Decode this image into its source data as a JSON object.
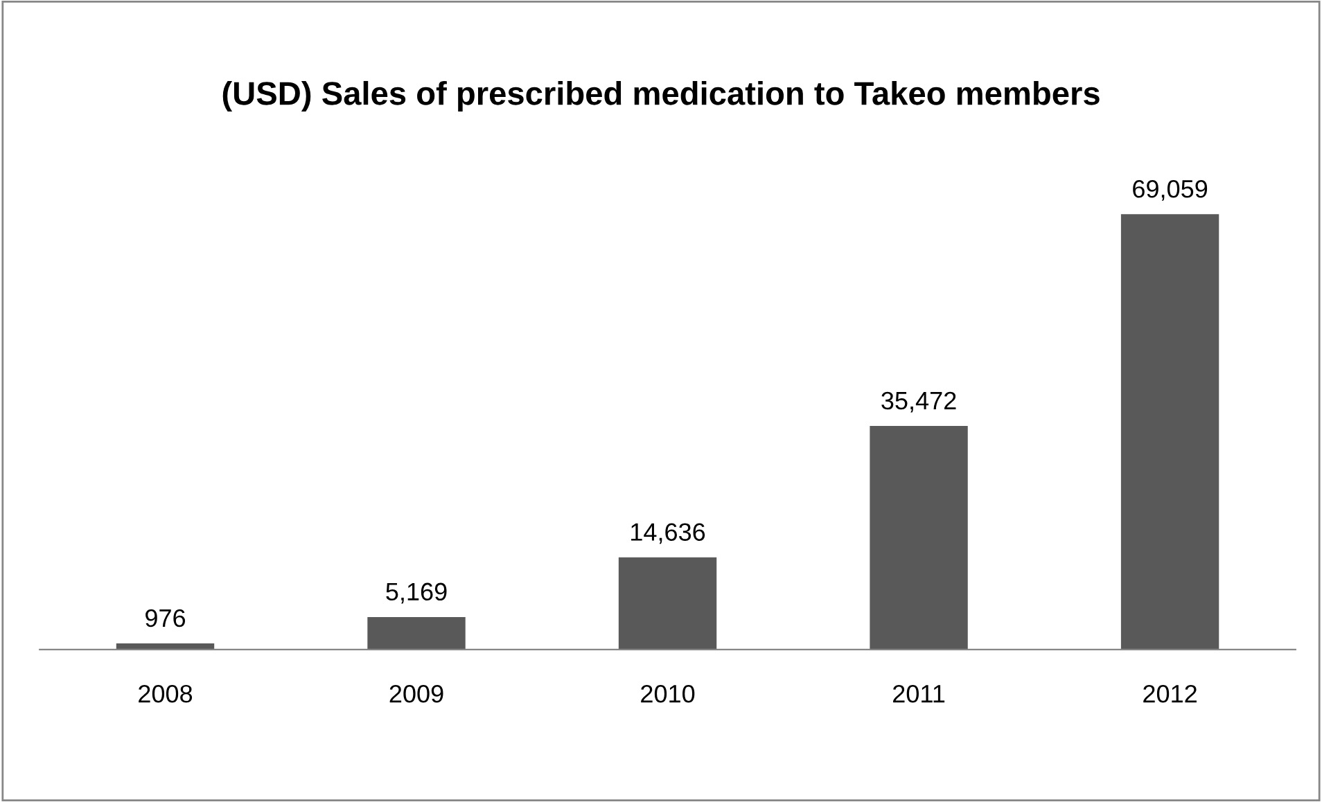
{
  "chart_data": {
    "type": "bar",
    "title": "(USD) Sales of prescribed medication to Takeo members",
    "categories": [
      "2008",
      "2009",
      "2010",
      "2011",
      "2012"
    ],
    "values": [
      976,
      5169,
      14636,
      35472,
      69059
    ],
    "value_labels": [
      "976",
      "5,169",
      "14,636",
      "35,472",
      "69,059"
    ],
    "color": "#595959",
    "grid": false,
    "legend": false,
    "tick_labels": "x"
  }
}
